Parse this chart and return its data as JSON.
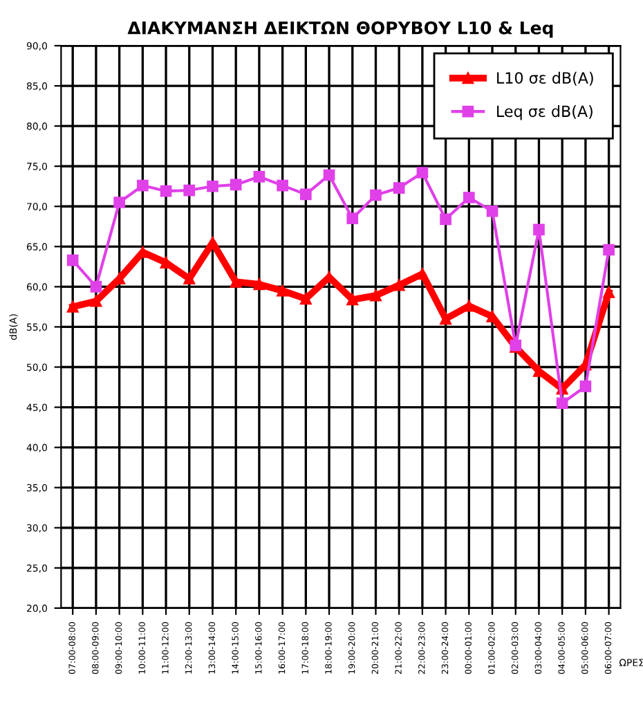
{
  "chart_data": {
    "type": "line",
    "title": "ΔΙΑΚΥΜΑΝΣΗ ΔΕΙΚΤΩΝ ΘΟΡΥΒΟΥ L10 & Leq",
    "xlabel": "ΩΡΕΣ",
    "ylabel": "dB(A)",
    "categories": [
      "07:00-08:00",
      "08:00-09:00",
      "09:00-10:00",
      "10:00-11:00",
      "11:00-12:00",
      "12:00-13:00",
      "13:00-14:00",
      "14:00-15:00",
      "15:00-16:00",
      "16:00-17:00",
      "17:00-18:00",
      "18:00-19:00",
      "19:00-20:00",
      "20:00-21:00",
      "21:00-22:00",
      "22:00-23:00",
      "23:00-24:00",
      "00:00-01:00",
      "01:00-02:00",
      "02:00-03:00",
      "03:00-04:00",
      "04:00-05:00",
      "05:00-06:00",
      "06:00-07:00"
    ],
    "series": [
      {
        "name": "L10 σε dB(A)",
        "color": "#ff0000",
        "marker": "triangle",
        "values": [
          57.5,
          58.2,
          61.0,
          64.3,
          63.0,
          61.0,
          65.5,
          60.6,
          60.3,
          59.5,
          58.5,
          61.2,
          58.4,
          58.9,
          60.2,
          61.6,
          56.0,
          57.6,
          56.3,
          52.5,
          49.5,
          47.3,
          50.3,
          59.3
        ]
      },
      {
        "name": "Leq σε dB(A)",
        "color": "#e040e8",
        "marker": "square",
        "values": [
          63.3,
          60.0,
          70.5,
          72.6,
          71.9,
          72.0,
          72.5,
          72.7,
          73.7,
          72.6,
          71.5,
          73.9,
          68.5,
          71.4,
          72.3,
          74.2,
          68.4,
          71.1,
          69.4,
          52.7,
          67.1,
          45.5,
          47.6,
          64.6
        ]
      }
    ],
    "ylim": [
      20,
      90
    ],
    "yticks": [
      {
        "value": 20,
        "label": "20,0"
      },
      {
        "value": 25,
        "label": "25,0"
      },
      {
        "value": 30,
        "label": "30,0"
      },
      {
        "value": 35,
        "label": "35,0"
      },
      {
        "value": 40,
        "label": "40,0"
      },
      {
        "value": 45,
        "label": "45,0"
      },
      {
        "value": 50,
        "label": "50,0"
      },
      {
        "value": 55,
        "label": "55,0"
      },
      {
        "value": 60,
        "label": "60,0"
      },
      {
        "value": 65,
        "label": "65,0"
      },
      {
        "value": 70,
        "label": "70,0"
      },
      {
        "value": 75,
        "label": "75,0"
      },
      {
        "value": 80,
        "label": "80,0"
      },
      {
        "value": 85,
        "label": "85,0"
      },
      {
        "value": 90,
        "label": "90,0"
      }
    ],
    "grid": true,
    "legend": "top right",
    "line_style": "solid"
  }
}
